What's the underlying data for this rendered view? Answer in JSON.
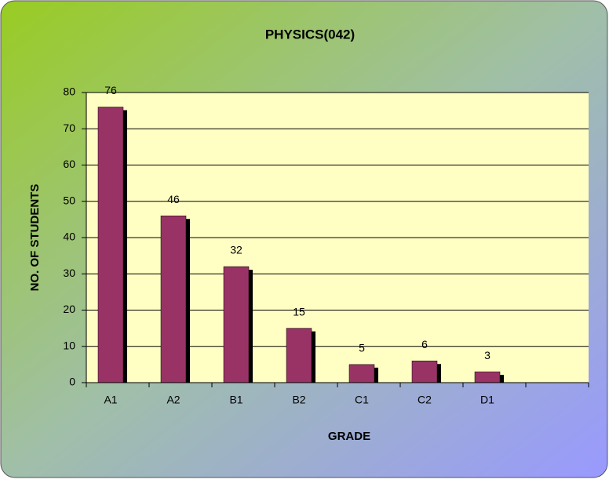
{
  "chart_data": {
    "type": "bar",
    "title": "PHYSICS(042)",
    "x_label": "GRADE",
    "y_label": "NO. OF STUDENTS",
    "categories": [
      "A1",
      "A2",
      "B1",
      "B2",
      "C1",
      "C2",
      "D1",
      null
    ],
    "values": [
      76,
      46,
      32,
      15,
      5,
      6,
      3,
      null
    ],
    "color": "#993366",
    "ylim": [
      0,
      80
    ],
    "yticks": [
      0,
      10,
      20,
      30,
      40,
      50,
      60,
      70,
      80
    ],
    "grid": true
  }
}
